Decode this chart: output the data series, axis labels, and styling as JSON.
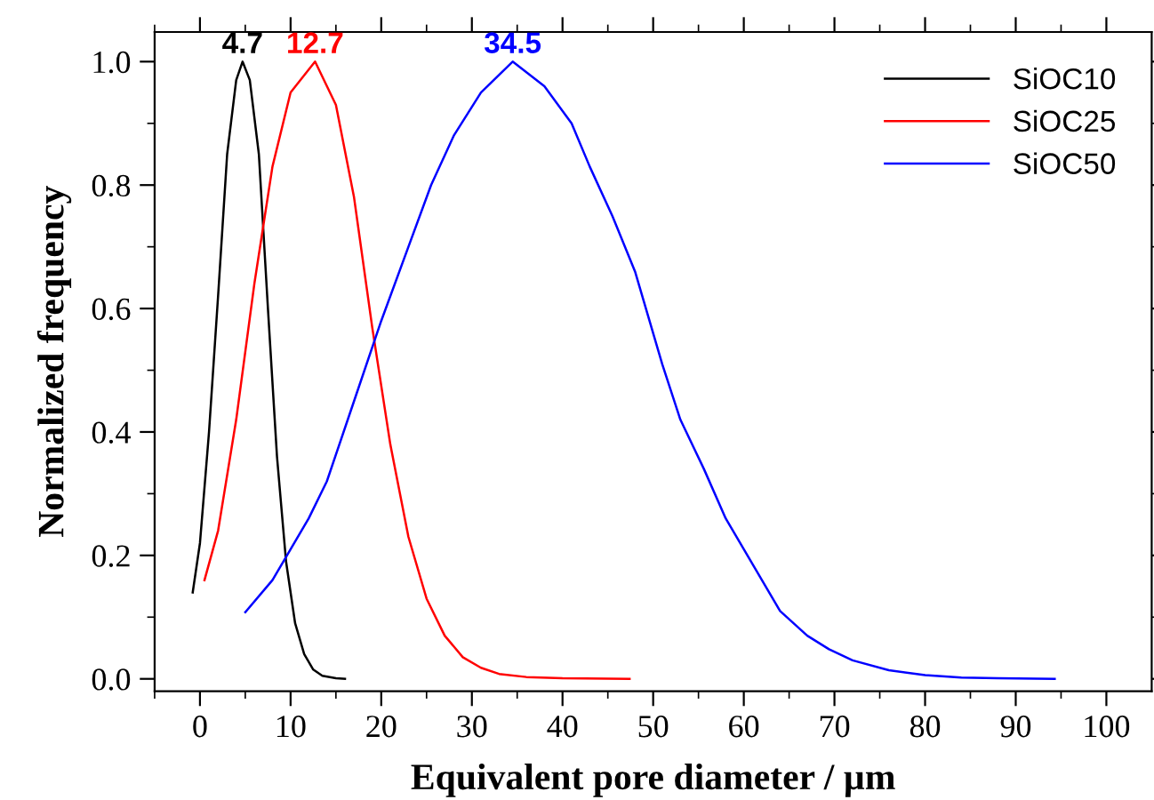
{
  "chart_data": {
    "type": "line",
    "xlabel": "Equivalent pore diameter / µm",
    "ylabel": "Normalized frequency",
    "xlim": [
      -5,
      105
    ],
    "xticks": [
      0,
      10,
      20,
      30,
      40,
      50,
      60,
      70,
      80,
      90,
      100
    ],
    "ylim": [
      -0.02,
      1.048
    ],
    "yticks": [
      {
        "value": 0,
        "label": "0.0"
      },
      {
        "value": 0.2,
        "label": "0.2"
      },
      {
        "value": 0.4,
        "label": "0.4"
      },
      {
        "value": 0.6,
        "label": "0.6"
      },
      {
        "value": 0.8,
        "label": "0.8"
      },
      {
        "value": 1,
        "label": "1.0"
      }
    ],
    "grid": false,
    "legend": "top right",
    "marker": "none",
    "line_style": "solid",
    "series": [
      {
        "name": "SiOC10",
        "color": "#000000",
        "x": [
          -0.8,
          0,
          1,
          2,
          3,
          4,
          4.7,
          5.5,
          6.5,
          7.5,
          8.5,
          9.5,
          10.5,
          11.5,
          12.5,
          13.5,
          15,
          16
        ],
        "values": [
          0.14,
          0.22,
          0.4,
          0.62,
          0.85,
          0.97,
          1.0,
          0.97,
          0.85,
          0.6,
          0.36,
          0.19,
          0.09,
          0.04,
          0.015,
          0.005,
          0.001,
          0
        ]
      },
      {
        "name": "SiOC25",
        "color": "#ff0000",
        "x": [
          0.5,
          2,
          4,
          6,
          8,
          10,
          12.7,
          15,
          17,
          19,
          21,
          23,
          25,
          27,
          29,
          31,
          33,
          36,
          40,
          47.4
        ],
        "values": [
          0.16,
          0.24,
          0.42,
          0.64,
          0.83,
          0.95,
          1.0,
          0.93,
          0.78,
          0.57,
          0.38,
          0.23,
          0.13,
          0.07,
          0.035,
          0.018,
          0.008,
          0.003,
          0.001,
          0
        ]
      },
      {
        "name": "SiOC50",
        "color": "#0000ff",
        "x": [
          5,
          8,
          10,
          12,
          14,
          17,
          20,
          23,
          25.5,
          28,
          31,
          34.5,
          38,
          41,
          43,
          45.5,
          48,
          51,
          53,
          55.6,
          58,
          60,
          62,
          64,
          67,
          69.4,
          72,
          76,
          80,
          84,
          88,
          94.3
        ],
        "values": [
          0.108,
          0.16,
          0.21,
          0.26,
          0.32,
          0.45,
          0.58,
          0.7,
          0.8,
          0.88,
          0.95,
          1.0,
          0.96,
          0.9,
          0.83,
          0.75,
          0.66,
          0.51,
          0.42,
          0.34,
          0.26,
          0.21,
          0.16,
          0.11,
          0.07,
          0.048,
          0.03,
          0.014,
          0.006,
          0.002,
          0.001,
          0
        ]
      }
    ],
    "annotations": [
      {
        "text": "4.7",
        "x": 4.7,
        "y": 1.0
      },
      {
        "text": "12.7",
        "x": 12.7,
        "y": 1.0
      },
      {
        "text": "34.5",
        "x": 34.5,
        "y": 1.0
      }
    ]
  }
}
